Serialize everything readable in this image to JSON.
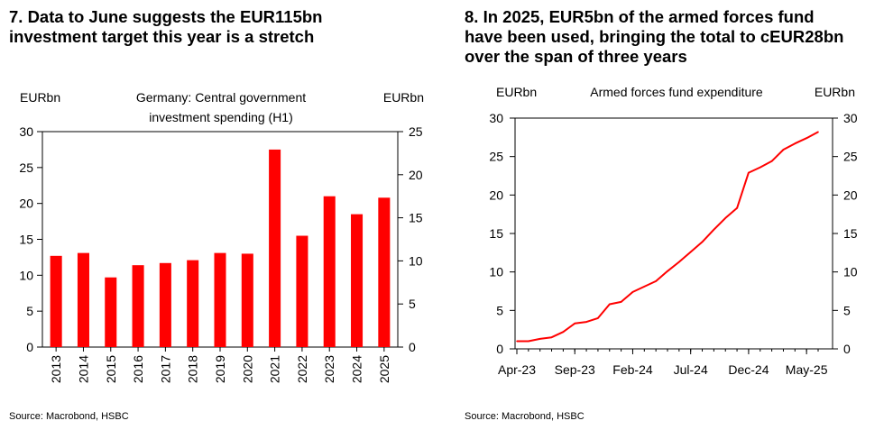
{
  "charts": [
    {
      "title": "7.  Data to June suggests the EUR115bn\ninvestment target this year is a stretch",
      "source": "Source: Macrobond, HSBC",
      "chart_data": {
        "type": "bar",
        "title": "Germany: Central government investment spending (H1)",
        "title_lines": [
          "Germany: Central government",
          "investment spending (H1)"
        ],
        "ylabel_left": "EURbn",
        "ylabel_right": "EURbn",
        "categories": [
          "2013",
          "2014",
          "2015",
          "2016",
          "2017",
          "2018",
          "2019",
          "2020",
          "2021",
          "2022",
          "2023",
          "2024",
          "2025"
        ],
        "series": [
          {
            "values": [
              12.7,
              13.1,
              9.7,
              11.4,
              11.7,
              12.1,
              13.1,
              13.0,
              27.5,
              15.5,
              21.0,
              18.5,
              20.8
            ],
            "color": "#ff0000"
          }
        ],
        "ylim_left": [
          0,
          30
        ],
        "yticks_left": [
          0,
          5,
          10,
          15,
          20,
          25,
          30
        ],
        "ylim_right": [
          0,
          25
        ],
        "yticks_right": [
          0,
          5,
          10,
          15,
          20,
          25
        ],
        "grid": false,
        "legend": "none"
      }
    },
    {
      "title": "8. In 2025, EUR5bn of the armed forces fund\nhave been used, bringing the total to cEUR28bn\nover the span of three years",
      "source": "Source: Macrobond, HSBC",
      "chart_data": {
        "type": "line",
        "title": "Armed forces fund expenditure",
        "ylabel_left": "EURbn",
        "ylabel_right": "EURbn",
        "xtick_labels": [
          "Apr-23",
          "Sep-23",
          "Feb-24",
          "Jul-24",
          "Dec-24",
          "May-25"
        ],
        "x": [
          "2023-04",
          "2023-05",
          "2023-06",
          "2023-07",
          "2023-08",
          "2023-09",
          "2023-10",
          "2023-11",
          "2023-12",
          "2024-01",
          "2024-02",
          "2024-03",
          "2024-04",
          "2024-05",
          "2024-06",
          "2024-07",
          "2024-08",
          "2024-09",
          "2024-10",
          "2024-11",
          "2024-12",
          "2025-01",
          "2025-02",
          "2025-03",
          "2025-04",
          "2025-05",
          "2025-06"
        ],
        "series": [
          {
            "values": [
              1.0,
              1.0,
              1.3,
              1.5,
              2.2,
              3.3,
              3.5,
              4.0,
              5.8,
              6.1,
              7.4,
              8.1,
              8.8,
              10.1,
              11.3,
              12.6,
              13.9,
              15.5,
              17.0,
              18.3,
              22.9,
              23.6,
              24.4,
              25.9,
              26.7,
              27.4,
              28.2
            ],
            "color": "#ff0000"
          }
        ],
        "ylim_left": [
          0,
          30
        ],
        "yticks_left": [
          0,
          5,
          10,
          15,
          20,
          25,
          30
        ],
        "ylim_right": [
          0,
          30
        ],
        "yticks_right": [
          0,
          5,
          10,
          15,
          20,
          25,
          30
        ],
        "grid": false,
        "legend": "none"
      }
    }
  ]
}
